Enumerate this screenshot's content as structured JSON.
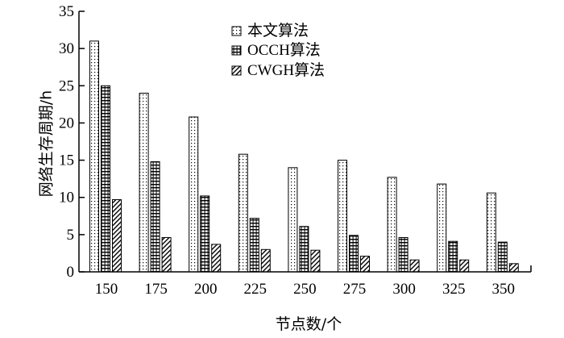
{
  "chart_data": {
    "type": "bar",
    "title": "",
    "xlabel": "节点数/个",
    "ylabel": "网络生存周期/h",
    "categories": [
      "150",
      "175",
      "200",
      "225",
      "250",
      "275",
      "300",
      "325",
      "350"
    ],
    "series": [
      {
        "name": "本文算法",
        "pattern": "dots",
        "values": [
          31,
          24,
          20.8,
          15.8,
          14,
          15,
          12.7,
          11.8,
          10.6
        ]
      },
      {
        "name": "OCCH算法",
        "pattern": "grid",
        "values": [
          25,
          14.8,
          10.2,
          7.2,
          6.1,
          4.9,
          4.6,
          4.1,
          4.0
        ]
      },
      {
        "name": "CWGH算法",
        "pattern": "hatch",
        "values": [
          9.7,
          4.6,
          3.7,
          3.0,
          2.9,
          2.1,
          1.6,
          1.6,
          1.1
        ]
      }
    ],
    "ylim": [
      0,
      35
    ],
    "yticks": [
      0,
      5,
      10,
      15,
      20,
      25,
      30,
      35
    ],
    "grid": false,
    "legend_position": "top-center"
  }
}
